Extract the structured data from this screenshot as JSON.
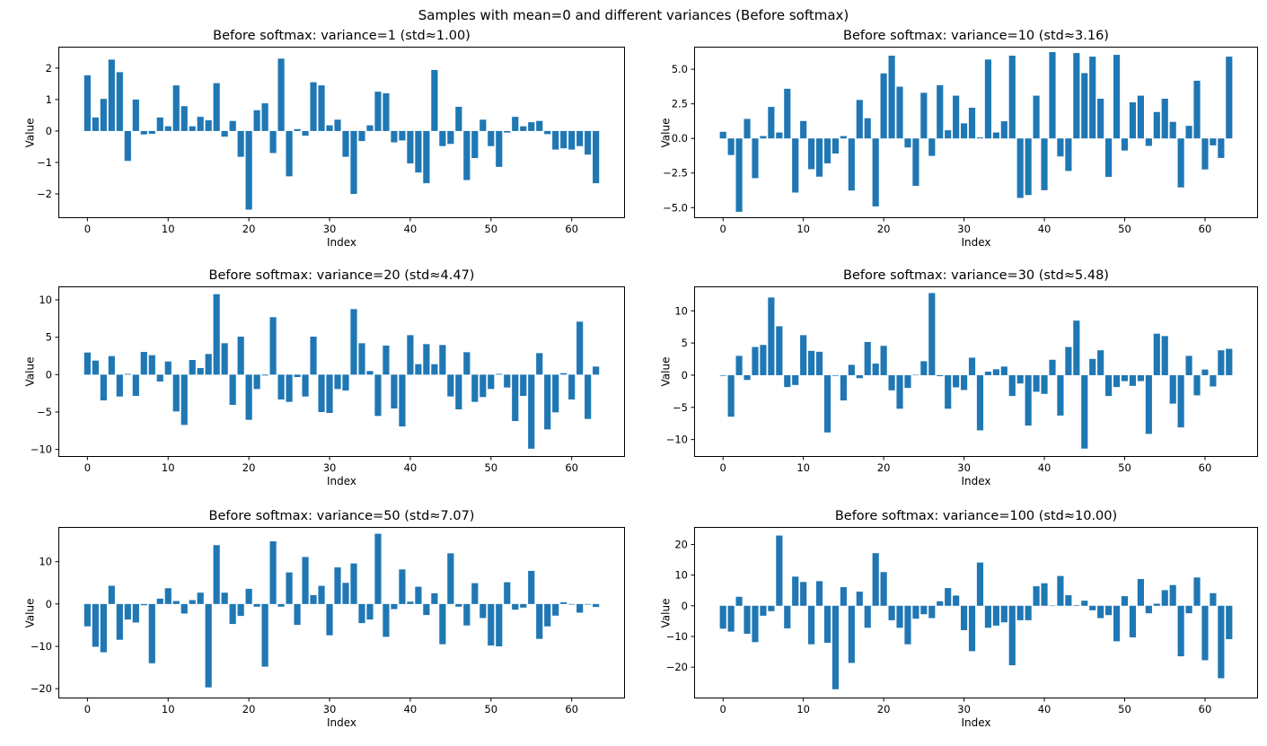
{
  "figure": {
    "title": "Samples with mean=0 and different variances (Before softmax)",
    "bar_color": "#1f77b4",
    "spine_color": "#000000",
    "text_color": "#000000",
    "background_color": "#ffffff"
  },
  "chart_data": [
    {
      "type": "bar",
      "title": "Before softmax: variance=1 (std≈1.00)",
      "xlabel": "Index",
      "ylabel": "Value",
      "x_is_index": true,
      "n_bars": 64,
      "bar_width": 0.8,
      "grid": false,
      "legend": "none",
      "xlim": [
        -3.6,
        66.6
      ],
      "ylim": [
        -2.77,
        2.68
      ],
      "xticks": [
        0,
        10,
        20,
        30,
        40,
        50,
        60
      ],
      "yticks": [
        2,
        1,
        0,
        -1,
        -2
      ],
      "ytick_labels": [
        "2",
        "1",
        "0",
        "−1",
        "−2"
      ],
      "values": [
        1.77,
        0.43,
        1.02,
        2.27,
        1.87,
        -0.95,
        1.0,
        -0.11,
        -0.09,
        0.43,
        0.15,
        1.45,
        0.79,
        0.15,
        0.45,
        0.34,
        1.52,
        -0.18,
        0.32,
        -0.82,
        -2.5,
        0.66,
        0.88,
        -0.7,
        2.3,
        -1.44,
        0.06,
        -0.15,
        1.55,
        1.45,
        0.18,
        0.36,
        -0.82,
        -2.0,
        -0.32,
        0.18,
        1.25,
        1.2,
        -0.36,
        -0.3,
        -1.03,
        -1.32,
        -1.66,
        1.94,
        -0.48,
        -0.41,
        0.77,
        -1.56,
        -0.86,
        0.36,
        -0.48,
        -1.14,
        -0.05,
        0.45,
        0.15,
        0.28,
        0.32,
        -0.1,
        -0.59,
        -0.55,
        -0.59,
        -0.48,
        -0.75,
        -1.66
      ]
    },
    {
      "type": "bar",
      "title": "Before softmax: variance=10 (std≈3.16)",
      "xlabel": "Index",
      "ylabel": "Value",
      "x_is_index": true,
      "n_bars": 64,
      "bar_width": 0.8,
      "grid": false,
      "legend": "none",
      "xlim": [
        -3.6,
        66.6
      ],
      "ylim": [
        -5.76,
        6.63
      ],
      "xticks": [
        0,
        10,
        20,
        30,
        40,
        50,
        60
      ],
      "yticks": [
        5.0,
        2.5,
        0.0,
        -2.5,
        -5.0
      ],
      "ytick_labels": [
        "5.0",
        "2.5",
        "0.0",
        "−2.5",
        "−5.0"
      ],
      "values": [
        0.48,
        -1.2,
        -5.3,
        1.41,
        -2.87,
        0.17,
        2.28,
        0.43,
        3.59,
        -3.91,
        1.26,
        -2.22,
        -2.76,
        -1.8,
        -1.09,
        0.17,
        -3.76,
        2.78,
        1.46,
        -4.91,
        4.7,
        5.98,
        3.74,
        -0.65,
        -3.43,
        3.3,
        -1.26,
        3.85,
        0.59,
        3.09,
        1.09,
        2.22,
        0.07,
        5.7,
        0.43,
        1.24,
        5.98,
        -4.3,
        -4.09,
        3.09,
        -3.74,
        6.24,
        -1.3,
        -2.35,
        6.17,
        4.72,
        5.91,
        2.87,
        -2.78,
        6.04,
        -0.87,
        2.61,
        3.09,
        -0.54,
        1.91,
        2.87,
        1.2,
        -3.54,
        0.91,
        4.17,
        -2.24,
        -0.5,
        -1.41,
        5.91
      ]
    },
    {
      "type": "bar",
      "title": "Before softmax: variance=20 (std≈4.47)",
      "xlabel": "Index",
      "ylabel": "Value",
      "x_is_index": true,
      "n_bars": 64,
      "bar_width": 0.8,
      "grid": false,
      "legend": "none",
      "xlim": [
        -3.6,
        66.6
      ],
      "ylim": [
        -11.0,
        11.8
      ],
      "xticks": [
        0,
        10,
        20,
        30,
        40,
        50,
        60
      ],
      "yticks": [
        10,
        5,
        0,
        -5,
        -10
      ],
      "ytick_labels": [
        "10",
        "5",
        "0",
        "−5",
        "−10"
      ],
      "values": [
        2.96,
        1.88,
        -3.44,
        2.48,
        -2.92,
        0.1,
        -2.84,
        3.04,
        2.6,
        -0.92,
        1.76,
        -4.92,
        -6.72,
        1.96,
        0.88,
        2.76,
        10.76,
        4.2,
        -4.04,
        5.08,
        -6.04,
        -1.92,
        -0.12,
        7.68,
        -3.32,
        -3.64,
        -0.32,
        -2.92,
        5.08,
        -5.0,
        -5.12,
        -1.92,
        -2.12,
        8.76,
        4.2,
        0.48,
        -5.52,
        3.88,
        -4.52,
        -6.92,
        5.28,
        1.4,
        4.08,
        1.4,
        3.96,
        -2.92,
        -4.64,
        3.0,
        -3.64,
        -3.0,
        -1.92,
        0.1,
        -1.72,
        -6.2,
        -2.84,
        -9.9,
        2.88,
        -7.32,
        -5.04,
        0.2,
        -3.32,
        7.08,
        -5.92,
        1.08
      ]
    },
    {
      "type": "bar",
      "title": "Before softmax: variance=30 (std≈5.48)",
      "xlabel": "Index",
      "ylabel": "Value",
      "x_is_index": true,
      "n_bars": 64,
      "bar_width": 0.8,
      "grid": false,
      "legend": "none",
      "xlim": [
        -3.6,
        66.6
      ],
      "ylim": [
        -12.7,
        13.8
      ],
      "xticks": [
        0,
        10,
        20,
        30,
        40,
        50,
        60
      ],
      "yticks": [
        10,
        5,
        0,
        -5,
        -10
      ],
      "ytick_labels": [
        "10",
        "5",
        "0",
        "−5",
        "−10"
      ],
      "values": [
        -0.1,
        -6.45,
        3.0,
        -0.74,
        4.38,
        4.7,
        12.07,
        7.6,
        -1.84,
        -1.52,
        6.22,
        3.78,
        3.64,
        -8.89,
        -0.1,
        -3.92,
        1.61,
        -0.46,
        5.16,
        1.8,
        4.56,
        -2.35,
        -5.21,
        -1.98,
        0.05,
        2.17,
        12.76,
        -0.15,
        -5.21,
        -1.89,
        -2.3,
        2.72,
        -8.57,
        0.55,
        0.92,
        1.34,
        -3.23,
        -1.29,
        -7.83,
        -2.58,
        -2.9,
        2.4,
        -6.27,
        4.38,
        8.48,
        -11.4,
        2.53,
        3.87,
        -3.23,
        -1.84,
        -0.92,
        -1.66,
        -0.92,
        -9.12,
        6.45,
        6.08,
        -4.42,
        -8.11,
        3.0,
        -3.13,
        0.88,
        -1.75,
        3.87,
        4.1
      ]
    },
    {
      "type": "bar",
      "title": "Before softmax: variance=50 (std≈7.07)",
      "xlabel": "Index",
      "ylabel": "Value",
      "x_is_index": true,
      "n_bars": 64,
      "bar_width": 0.8,
      "grid": false,
      "legend": "none",
      "xlim": [
        -3.6,
        66.6
      ],
      "ylim": [
        -22.3,
        18.2
      ],
      "xticks": [
        0,
        10,
        20,
        30,
        40,
        50,
        60
      ],
      "yticks": [
        10,
        0,
        -10,
        -20
      ],
      "ytick_labels": [
        "10",
        "0",
        "−10",
        "−20"
      ],
      "values": [
        -5.28,
        -10.1,
        -11.4,
        4.3,
        -8.45,
        -3.66,
        -4.37,
        -0.28,
        -14.0,
        1.27,
        3.73,
        0.7,
        -2.25,
        0.92,
        2.68,
        -19.7,
        13.9,
        2.68,
        -4.72,
        -2.82,
        3.59,
        -0.63,
        -14.8,
        14.8,
        -0.63,
        7.46,
        -4.93,
        11.1,
        2.11,
        4.3,
        -7.39,
        8.66,
        5.0,
        9.58,
        -4.51,
        -3.66,
        16.6,
        -7.75,
        -1.2,
        8.17,
        0.56,
        4.08,
        -2.6,
        2.54,
        -9.5,
        11.97,
        -0.63,
        -5.07,
        4.93,
        -3.31,
        -9.79,
        -10.0,
        5.14,
        -1.34,
        -0.85,
        7.82,
        -8.24,
        -5.28,
        -2.75,
        0.42,
        -0.14,
        -2.04,
        -0.14,
        -0.7
      ]
    },
    {
      "type": "bar",
      "title": "Before softmax: variance=100 (std≈10.00)",
      "xlabel": "Index",
      "ylabel": "Value",
      "x_is_index": true,
      "n_bars": 64,
      "bar_width": 0.8,
      "grid": false,
      "legend": "none",
      "xlim": [
        -3.6,
        66.6
      ],
      "ylim": [
        -30.2,
        25.7
      ],
      "xticks": [
        0,
        10,
        20,
        30,
        40,
        50,
        60
      ],
      "yticks": [
        20,
        10,
        0,
        -10,
        -20
      ],
      "ytick_labels": [
        "20",
        "10",
        "0",
        "−10",
        "−20"
      ],
      "values": [
        -7.45,
        -8.43,
        2.94,
        -9.12,
        -11.86,
        -3.24,
        -1.76,
        22.9,
        -7.35,
        9.51,
        7.75,
        -12.55,
        8.04,
        -12.06,
        -27.2,
        6.08,
        -18.63,
        4.61,
        -7.16,
        17.16,
        10.98,
        -4.71,
        -7.16,
        -12.55,
        -4.22,
        -2.75,
        -4.02,
        1.47,
        5.78,
        3.33,
        -7.94,
        -14.8,
        14.1,
        -7.16,
        -6.47,
        -5.39,
        -19.4,
        -4.71,
        -4.71,
        6.37,
        7.35,
        0.05,
        9.71,
        3.43,
        0.2,
        1.67,
        -1.47,
        -4.02,
        -3.04,
        -11.57,
        3.14,
        -10.29,
        8.73,
        -2.45,
        0.69,
        5.1,
        6.76,
        -16.47,
        -2.45,
        9.22,
        -17.75,
        4.12,
        -23.63,
        -10.88
      ]
    }
  ]
}
